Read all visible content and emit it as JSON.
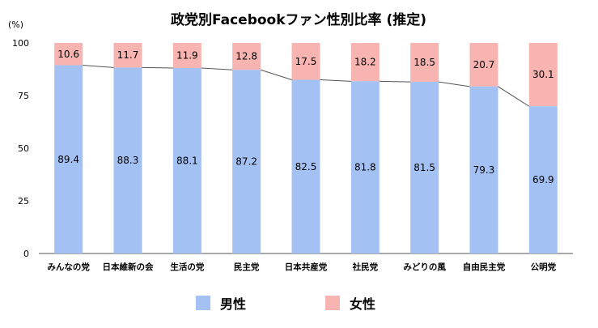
{
  "chart_data": {
    "type": "bar",
    "stacked": true,
    "percent_stacked": true,
    "title": "政党別Facebookファン性別比率 (推定)",
    "ylabel": "",
    "y_unit": "(%)",
    "ylim": [
      0,
      100
    ],
    "yticks": [
      "0",
      "25",
      "50",
      "75",
      "100"
    ],
    "categories": [
      "みんなの党",
      "日本維新の会",
      "生活の党",
      "民主党",
      "日本共産党",
      "社民党",
      "みどりの風",
      "自由民主党",
      "公明党"
    ],
    "series": [
      {
        "name": "男性",
        "color": "#a4c1f4",
        "values": [
          89.4,
          88.3,
          88.1,
          87.2,
          82.5,
          81.8,
          81.5,
          79.3,
          69.9
        ]
      },
      {
        "name": "女性",
        "color": "#f7b4b0",
        "values": [
          10.6,
          11.7,
          11.9,
          12.8,
          17.5,
          18.2,
          18.5,
          20.7,
          30.1
        ]
      }
    ],
    "series_lines": true,
    "grid": false,
    "legend_position": "bottom"
  }
}
